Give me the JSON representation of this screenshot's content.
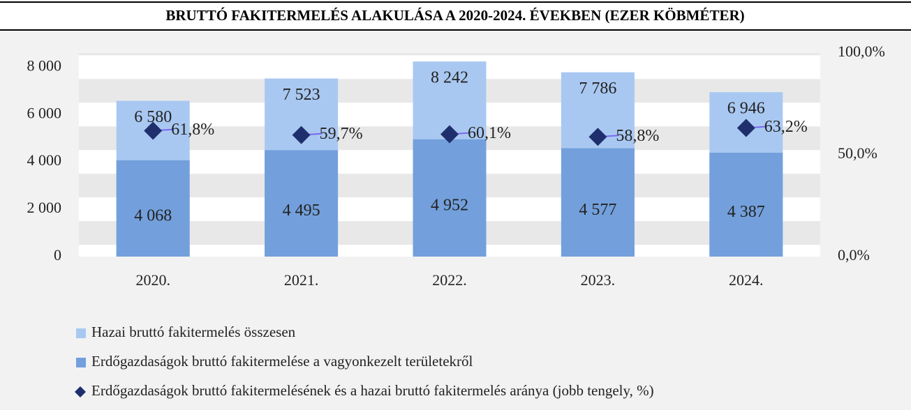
{
  "chart_data": {
    "type": "bar",
    "title": "BRUTTÓ FAKITERMELÉS ALAKULÁSA A 2020-2024. ÉVEKBEN (EZER KÖBMÉTER)",
    "categories": [
      "2020.",
      "2021.",
      "2022.",
      "2023.",
      "2024."
    ],
    "series": [
      {
        "name": "Hazai bruttó fakitermelés összesen",
        "color": "#a9c8f1",
        "values": [
          6580,
          7523,
          8242,
          7786,
          6946
        ],
        "value_labels": [
          "6 580",
          "7 523",
          "8 242",
          "7 786",
          "6 946"
        ]
      },
      {
        "name": "Erdőgazdaságok bruttó fakitermelése a vagyonkezelt területekről",
        "color": "#73a0dc",
        "values": [
          4068,
          4495,
          4952,
          4577,
          4387
        ],
        "value_labels": [
          "4 068",
          "4 495",
          "4 952",
          "4 577",
          "4 387"
        ]
      },
      {
        "name": "Erdőgazdaságok bruttó fakitermelésének és a hazai bruttó fakitermelés aránya (jobb tengely, %)",
        "color": "#1f2f6e",
        "type": "scatter",
        "axis": "y2",
        "values": [
          61.8,
          59.7,
          60.1,
          58.8,
          63.2
        ],
        "value_labels": [
          "61,8%",
          "59,7%",
          "60,1%",
          "58,8%",
          "63,2%"
        ]
      }
    ],
    "ylim": [
      0,
      8600
    ],
    "yticks": [
      0,
      {
        "value": 2000,
        "label": "2 000"
      },
      {
        "value": 4000,
        "label": "4 000"
      },
      {
        "value": 6000,
        "label": "6 000"
      },
      {
        "value": 8000,
        "label": "8 000"
      }
    ],
    "y2lim": [
      0,
      100
    ],
    "y2ticks": [
      {
        "value": 0,
        "label": "0,0%"
      },
      {
        "value": 50,
        "label": "50,0%"
      },
      {
        "value": 100,
        "label": "100,0%"
      }
    ],
    "grid": true
  }
}
